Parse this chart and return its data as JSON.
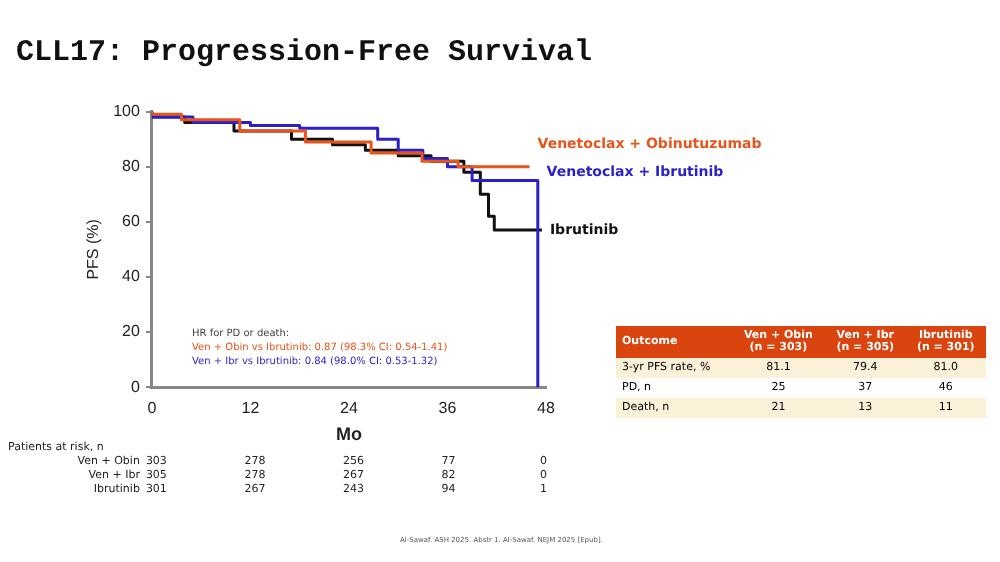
{
  "chart_data": {
    "type": "step",
    "title": "CLL17: Progression-Free Survival",
    "xlabel": "Mo",
    "ylabel": "PFS (%)",
    "xlim": [
      0,
      48
    ],
    "xticks": [
      0,
      12,
      24,
      36,
      48
    ],
    "ylim": [
      0,
      100
    ],
    "yticks": [
      0,
      20,
      40,
      60,
      80,
      100
    ],
    "grid": false,
    "legend": false,
    "marker": "none",
    "series": [
      {
        "name": "Venetoclax + Obinutuzumab",
        "color": "#e8541a",
        "x": [
          0,
          3.6,
          10.7,
          18.7,
          26.7,
          32.9,
          37.3,
          39,
          46
        ],
        "values": [
          100,
          99,
          97,
          93,
          89,
          85,
          82,
          80,
          80
        ]
      },
      {
        "name": "Venetoclax + Ibrutinib",
        "color": "#2a1fc8",
        "x": [
          0,
          5,
          12,
          18,
          27.5,
          30,
          33,
          36,
          39,
          40.5,
          47,
          47.1
        ],
        "values": [
          100,
          98,
          96,
          95,
          94,
          90,
          86,
          83,
          80,
          75,
          75,
          0
        ]
      },
      {
        "name": "Ibrutinib",
        "color": "#111111",
        "x": [
          0,
          4,
          10,
          17,
          22,
          26,
          30,
          34,
          38,
          40,
          41,
          41.7,
          42,
          47.5
        ],
        "values": [
          100,
          98,
          96,
          93,
          90,
          88,
          86,
          84,
          82,
          78,
          70,
          62,
          57,
          57
        ]
      }
    ],
    "annotations": [
      "HR for PD or death:",
      "Ven + Obin vs Ibrutinib: 0.87 (98.3% CI: 0.54-1.41)",
      "Ven + Ibr vs Ibrutinib: 0.84 (98.0% CI: 0.53-1.32)",
      "Patients at risk, n",
      "Ven + Obin\t303\t278\t256\t77\t0",
      "Ven + Ibr\t305\t278\t267\t82\t0",
      "Ibrutinib\t301\t267\t243\t94\t1",
      "Outcome\tVen + Obin\n(n = 303)\tVen + Ibr\n(n = 305)\tIbrutinib\n(n = 301)",
      "3-yr PFS rate, %\t81.1\t79.4\t81.0",
      "PD, n\t25\t37\t46",
      "Death, n\t21\t13\t11",
      "Al-Sawaf. ASH 2025. Abstr 1. Al-Sawaf. NEJM 2025 [Epub]."
    ]
  }
}
